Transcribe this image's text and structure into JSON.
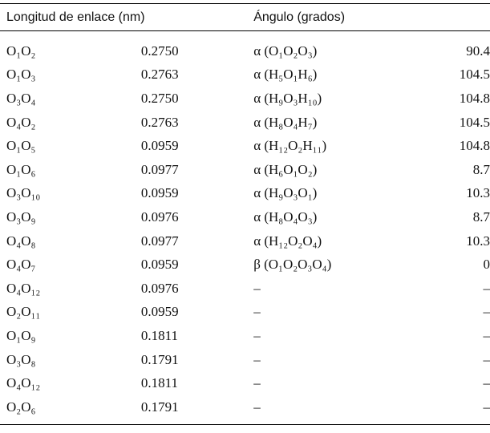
{
  "table": {
    "header": [
      "Longitud de enlace (nm)",
      "Ángulo (grados)"
    ],
    "rows": [
      [
        "O₁O₂",
        "0.2750",
        "α (O₁O₂O₃)",
        "90.4"
      ],
      [
        "O₁O₃",
        "0.2763",
        "α (H₅O₁H₆)",
        "104.5"
      ],
      [
        "O₃O₄",
        "0.2750",
        "α (H₉O₃H₁₀)",
        "104.8"
      ],
      [
        "O₄O₂",
        "0.2763",
        "α (H₈O₄H₇)",
        "104.5"
      ],
      [
        "O₁O₅",
        "0.0959",
        "α (H₁₂O₂H₁₁)",
        "104.8"
      ],
      [
        "O₁O₆",
        "0.0977",
        "α (H₆O₁O₂)",
        "8.7"
      ],
      [
        "O₃O₁₀",
        "0.0959",
        "α (H₉O₃O₁)",
        "10.3"
      ],
      [
        "O₃O₉",
        "0.0976",
        "α (H₈O₄O₃)",
        "8.7"
      ],
      [
        "O₄O₈",
        "0.0977",
        "α (H₁₂O₂O₄)",
        "10.3"
      ],
      [
        "O₄O₇",
        "0.0959",
        "β (O₁O₂O₃O₄)",
        "0"
      ],
      [
        "O₄O₁₂",
        "0.0976",
        "–",
        "–"
      ],
      [
        "O₂O₁₁",
        "0.0959",
        "–",
        "–"
      ],
      [
        "O₁O₉",
        "0.1811",
        "–",
        "–"
      ],
      [
        "O₃O₈",
        "0.1791",
        "–",
        "–"
      ],
      [
        "O₄O₁₂",
        "0.1811",
        "–",
        "–"
      ],
      [
        "O₂O₆",
        "0.1791",
        "–",
        "–"
      ]
    ]
  }
}
